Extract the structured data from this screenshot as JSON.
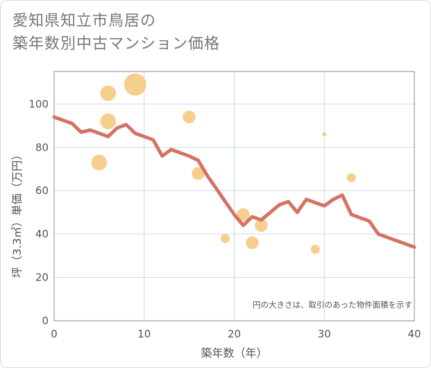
{
  "title_line1": "愛知県知立市鳥居の",
  "title_line2": "築年数別中古マンション価格",
  "note": "円の大きさは、取引のあった物件面積を示す",
  "colors": {
    "line": "#d47363",
    "bubble": "#f5c579",
    "grid": "#c9d9e6",
    "axis": "#888888"
  },
  "chart_data": {
    "type": "scatter",
    "xlabel": "築年数（年）",
    "ylabel": "坪（3.3㎡）単価（万円）",
    "xlim": [
      0,
      40
    ],
    "ylim": [
      0,
      115
    ],
    "xticks": [
      0,
      10,
      20,
      30,
      40
    ],
    "yticks": [
      0,
      20,
      40,
      60,
      80,
      100
    ],
    "grid": true,
    "series": [
      {
        "type": "line",
        "x": [
          0,
          1,
          2,
          3,
          4,
          5,
          6,
          7,
          8,
          9,
          10,
          11,
          12,
          13,
          14,
          15,
          16,
          17,
          18,
          19,
          20,
          21,
          22,
          23,
          24,
          25,
          26,
          27,
          28,
          29,
          30,
          31,
          32,
          33,
          34,
          35,
          36,
          37,
          38,
          39,
          40
        ],
        "y": [
          94,
          92.5,
          91,
          87,
          88,
          86.5,
          85,
          89,
          90.5,
          86.5,
          85,
          83.5,
          76,
          79,
          77.5,
          76,
          74,
          67,
          61,
          55,
          49,
          44,
          48,
          46.5,
          50,
          53.5,
          55,
          50,
          56,
          54.5,
          53,
          56,
          58,
          49,
          47.5,
          46,
          40,
          38.5,
          37,
          35.5,
          34
        ]
      },
      {
        "type": "bubble",
        "points": [
          {
            "x": 5,
            "y": 73,
            "size": 3
          },
          {
            "x": 6,
            "y": 105,
            "size": 3
          },
          {
            "x": 6,
            "y": 92,
            "size": 3
          },
          {
            "x": 9,
            "y": 109,
            "size": 6
          },
          {
            "x": 15,
            "y": 94,
            "size": 2
          },
          {
            "x": 16,
            "y": 68,
            "size": 2
          },
          {
            "x": 19,
            "y": 38,
            "size": 1
          },
          {
            "x": 21,
            "y": 49,
            "size": 2
          },
          {
            "x": 22,
            "y": 36,
            "size": 2
          },
          {
            "x": 23,
            "y": 44,
            "size": 2
          },
          {
            "x": 29,
            "y": 33,
            "size": 1
          },
          {
            "x": 30,
            "y": 86,
            "size": 0.3
          },
          {
            "x": 33,
            "y": 66,
            "size": 1
          }
        ]
      }
    ]
  }
}
